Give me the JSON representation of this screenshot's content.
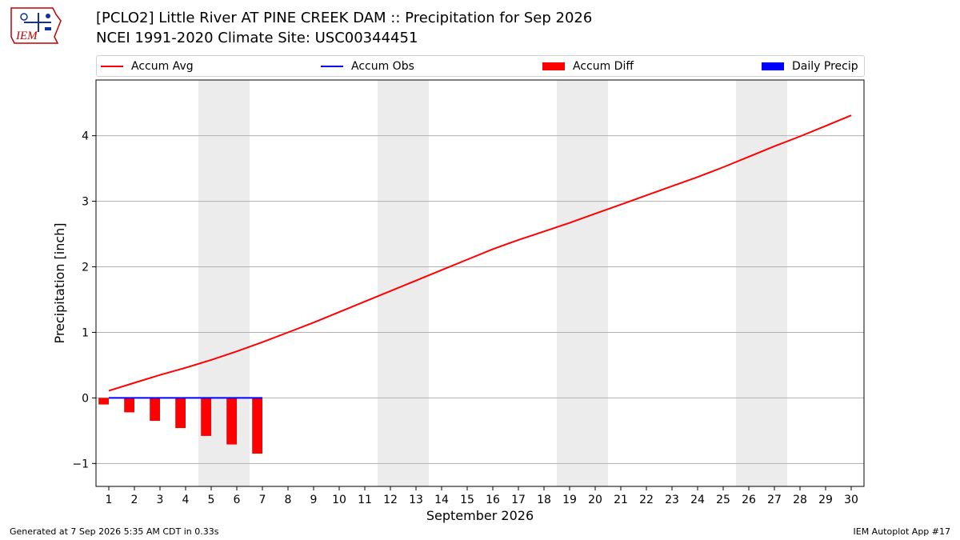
{
  "header": {
    "title_line1": "[PCLO2] Little River  AT PINE CREEK DAM :: Precipitation for Sep 2026",
    "title_line2": "NCEI 1991-2020 Climate Site: USC00344451",
    "logo_text": "IEM"
  },
  "legend": {
    "items": [
      {
        "label": "Accum Avg",
        "kind": "line",
        "color": "#ff0000"
      },
      {
        "label": "Accum Obs",
        "kind": "line",
        "color": "#0000ff"
      },
      {
        "label": "Accum Diff",
        "kind": "bar",
        "color": "#ff0000"
      },
      {
        "label": "Daily Precip",
        "kind": "bar",
        "color": "#0000ff"
      }
    ]
  },
  "footer": {
    "left": "Generated at 7 Sep 2026 5:35 AM CDT in 0.33s",
    "right": "IEM Autoplot App #17"
  },
  "chart_data": {
    "type": "line",
    "title": "[PCLO2] Little River  AT PINE CREEK DAM :: Precipitation for Sep 2026",
    "xlabel": "September 2026",
    "ylabel": "Precipitation [inch]",
    "x": [
      1,
      2,
      3,
      4,
      5,
      6,
      7,
      8,
      9,
      10,
      11,
      12,
      13,
      14,
      15,
      16,
      17,
      18,
      19,
      20,
      21,
      22,
      23,
      24,
      25,
      26,
      27,
      28,
      29,
      30
    ],
    "xlim": [
      0.5,
      30.5
    ],
    "ylim": [
      -1.35,
      4.85
    ],
    "yticks": [
      -1,
      0,
      1,
      2,
      3,
      4
    ],
    "ytick_labels": [
      "−1",
      "0",
      "1",
      "2",
      "3",
      "4"
    ],
    "grid": true,
    "legend_position": "top",
    "weekend_shading": [
      [
        4.5,
        6.5
      ],
      [
        11.5,
        13.5
      ],
      [
        18.5,
        20.5
      ],
      [
        25.5,
        27.5
      ]
    ],
    "series": [
      {
        "name": "Accum Avg",
        "type": "line",
        "color": "#ff0000",
        "x": [
          1,
          2,
          3,
          4,
          5,
          6,
          7,
          8,
          9,
          10,
          11,
          12,
          13,
          14,
          15,
          16,
          17,
          18,
          19,
          20,
          21,
          22,
          23,
          24,
          25,
          26,
          27,
          28,
          29,
          30
        ],
        "values": [
          0.11,
          0.23,
          0.35,
          0.46,
          0.58,
          0.71,
          0.85,
          1.0,
          1.15,
          1.31,
          1.47,
          1.63,
          1.79,
          1.95,
          2.11,
          2.27,
          2.41,
          2.54,
          2.67,
          2.81,
          2.95,
          3.09,
          3.23,
          3.37,
          3.52,
          3.68,
          3.84,
          3.99,
          4.15,
          4.31
        ]
      },
      {
        "name": "Accum Obs",
        "type": "line",
        "color": "#0000ff",
        "x": [
          1,
          2,
          3,
          4,
          5,
          6,
          7
        ],
        "values": [
          0,
          0,
          0,
          0,
          0,
          0,
          0
        ]
      },
      {
        "name": "Accum Diff",
        "type": "bar",
        "color": "#ff0000",
        "x": [
          1,
          2,
          3,
          4,
          5,
          6,
          7
        ],
        "values": [
          -0.1,
          -0.22,
          -0.35,
          -0.46,
          -0.58,
          -0.71,
          -0.85
        ]
      },
      {
        "name": "Daily Precip",
        "type": "bar",
        "color": "#0000ff",
        "x": [
          1,
          2,
          3,
          4,
          5,
          6,
          7
        ],
        "values": [
          0,
          0,
          0,
          0,
          0,
          0,
          0
        ]
      }
    ]
  }
}
